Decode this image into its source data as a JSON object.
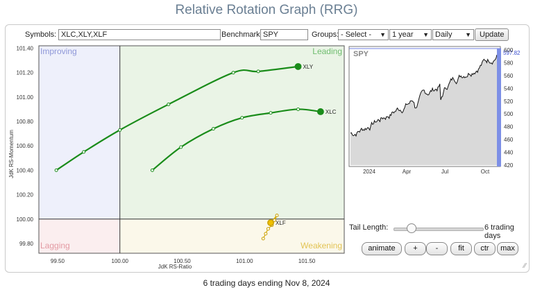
{
  "title": "Relative Rotation Graph (RRG)",
  "toolbar": {
    "symbols_label": "Symbols:",
    "symbols_value": "XLC,XLY,XLF",
    "benchmark_label": "Benchmark:",
    "benchmark_value": "SPY",
    "groups_label": "Groups:",
    "groups_value": "- Select -",
    "period_value": "1 year",
    "frequency_value": "Daily",
    "update_label": "Update"
  },
  "rrg": {
    "quadrants": {
      "improving": "Improving",
      "leading": "Leading",
      "lagging": "Lagging",
      "weakening": "Weakening"
    },
    "xlabel": "JdK RS-Ratio",
    "ylabel": "JdK RS-Momentum",
    "x_ticks": [
      "99.50",
      "100.00",
      "100.50",
      "101.00",
      "101.50"
    ],
    "y_ticks": [
      "101.40",
      "101.20",
      "101.00",
      "100.80",
      "100.60",
      "100.40",
      "100.20",
      "100.00",
      "99.80"
    ],
    "colors": {
      "improving": "#eef0fb",
      "leading": "#eaf4e6",
      "lagging": "#fbeeef",
      "weakening": "#fbf8ea",
      "tail_green": "#1a8c1a",
      "tail_yellow": "#d4a800"
    }
  },
  "mini_chart": {
    "symbol": "SPY",
    "last_value": "597.82",
    "y_ticks": [
      "600",
      "580",
      "560",
      "540",
      "520",
      "500",
      "480",
      "460",
      "440",
      "420"
    ],
    "x_ticks": [
      "2024",
      "Apr",
      "Jul",
      "Oct"
    ]
  },
  "tail": {
    "label": "Tail Length:",
    "value_text": "6 trading days",
    "value": 6
  },
  "controls": {
    "animate": "animate",
    "plus": "+",
    "minus": "-",
    "fit": "fit",
    "ctr": "ctr",
    "max": "max"
  },
  "footer": "6 trading days ending Nov 8, 2024",
  "chart_data": {
    "type": "scatter",
    "xlabel": "JdK RS-Ratio",
    "ylabel": "JdK RS-Momentum",
    "xlim": [
      99.35,
      101.8
    ],
    "ylim": [
      99.72,
      101.42
    ],
    "x_ticks": [
      99.5,
      100.0,
      100.5,
      101.0,
      101.5
    ],
    "y_ticks": [
      99.8,
      100.0,
      100.2,
      100.4,
      100.6,
      100.8,
      101.0,
      101.2,
      101.4
    ],
    "center": [
      100,
      100
    ],
    "series": [
      {
        "name": "XLY",
        "color": "#1a8c1a",
        "x": [
          99.49,
          99.71,
          100.0,
          100.39,
          100.91,
          101.11,
          101.43
        ],
        "y": [
          100.4,
          100.55,
          100.73,
          100.94,
          101.2,
          101.21,
          101.25
        ]
      },
      {
        "name": "XLC",
        "color": "#1a8c1a",
        "x": [
          100.26,
          100.49,
          100.75,
          100.98,
          101.21,
          101.43,
          101.61
        ],
        "y": [
          100.4,
          100.59,
          100.74,
          100.83,
          100.87,
          100.9,
          100.88
        ]
      },
      {
        "name": "XLF",
        "color": "#d4a800",
        "x": [
          101.15,
          101.17,
          101.19,
          101.22,
          101.24,
          101.26,
          101.21
        ],
        "y": [
          99.84,
          99.88,
          99.92,
          99.95,
          99.99,
          100.03,
          99.97
        ]
      }
    ]
  }
}
